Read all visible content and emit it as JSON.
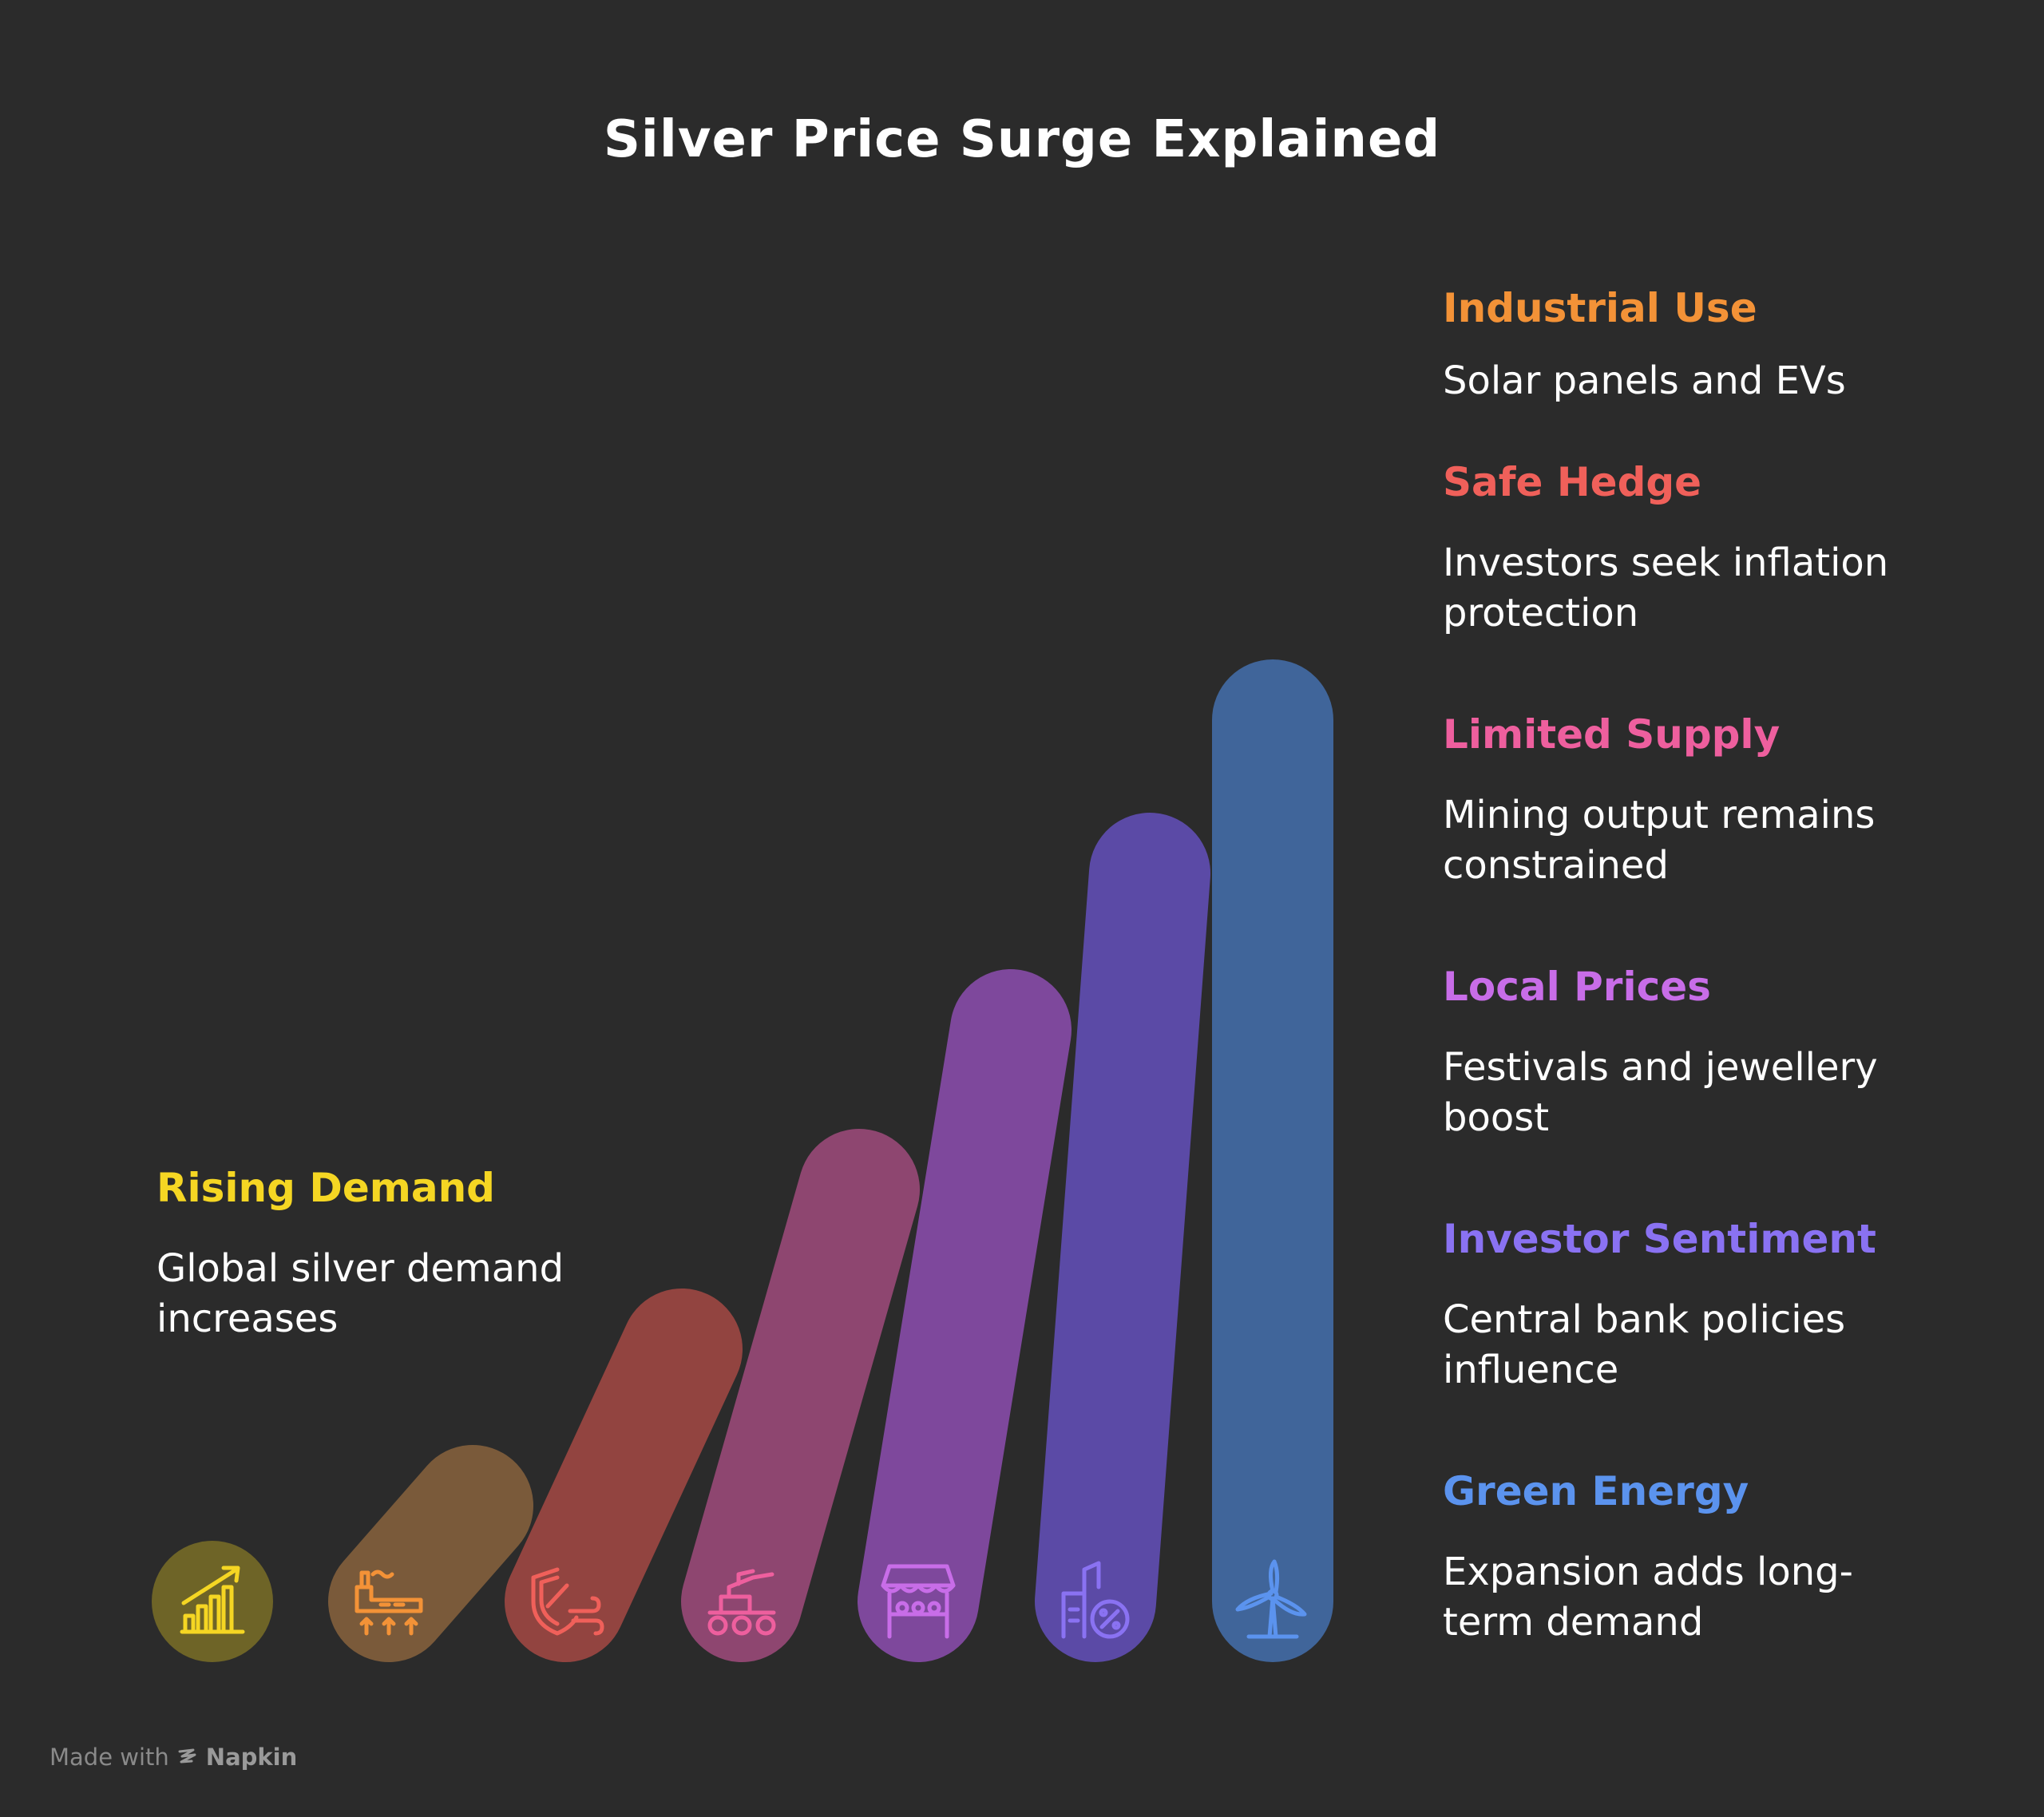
{
  "title": "Silver Price Surge Explained",
  "steps": [
    {
      "heading": "Rising Demand",
      "description": "Global silver demand increases",
      "color": "#f5d623",
      "bar_color": "#6e6427",
      "icon": "growth-chart-icon"
    },
    {
      "heading": "Industrial Use",
      "description": "Solar panels and EVs",
      "color": "#f39237",
      "bar_color": "#7a5a3a",
      "icon": "factory-icon"
    },
    {
      "heading": "Safe Hedge",
      "description": "Investors seek inflation protection",
      "color": "#f0605a",
      "bar_color": "#924440",
      "icon": "shield-icon"
    },
    {
      "heading": "Limited Supply",
      "description": "Mining output remains constrained",
      "color": "#ee5f9e",
      "bar_color": "#8e4670",
      "icon": "mining-machine-icon"
    },
    {
      "heading": "Local Prices",
      "description": "Festivals and jewellery boost",
      "color": "#c86de8",
      "bar_color": "#7e489c",
      "icon": "market-stall-icon"
    },
    {
      "heading": "Investor Sentiment",
      "description": "Central bank policies influence",
      "color": "#8a72f2",
      "bar_color": "#5b4aa6",
      "icon": "bank-percent-icon"
    },
    {
      "heading": "Green Energy",
      "description": "Expansion adds long-term demand",
      "color": "#5b93ee",
      "bar_color": "#40659a",
      "icon": "wind-turbine-icon"
    }
  ],
  "footer": {
    "prefix": "Made with",
    "brand": "Napkin"
  }
}
